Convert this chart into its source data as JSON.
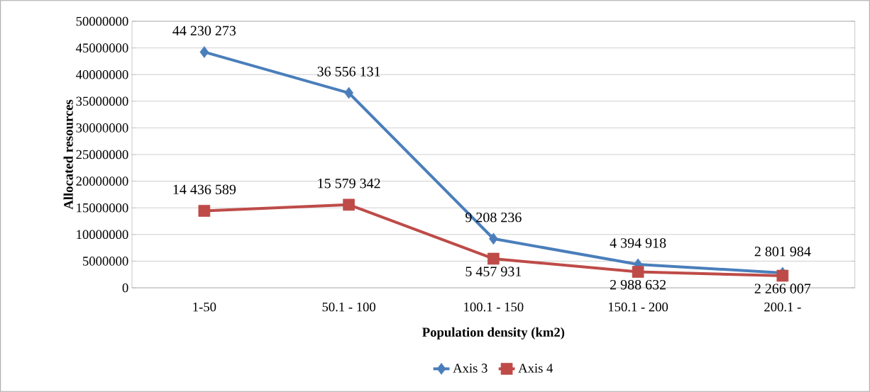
{
  "chart_data": {
    "type": "line",
    "xlabel": "Population density (km2)",
    "ylabel": "Allocated resources",
    "categories": [
      "1-50",
      "50.1 - 100",
      "100.1 - 150",
      "150.1 - 200",
      "200.1 -"
    ],
    "series": [
      {
        "name": "Axis 3",
        "color": "#4a7ebb",
        "marker": "diamond",
        "values": [
          44230273,
          36556131,
          9208236,
          4394918,
          2801984
        ],
        "value_labels": [
          "44 230 273",
          "36 556 131",
          "9 208 236",
          "4 394 918",
          "2 801 984"
        ]
      },
      {
        "name": "Axis 4",
        "color": "#be4b48",
        "marker": "square",
        "values": [
          14436589,
          15579342,
          5457931,
          2988632,
          2266007
        ],
        "value_labels": [
          "14 436 589",
          "15 579 342",
          "5 457 931",
          "2 988 632",
          "2 266 007"
        ]
      }
    ],
    "ylim": [
      0,
      50000000
    ],
    "yticks": [
      0,
      5000000,
      10000000,
      15000000,
      20000000,
      25000000,
      30000000,
      35000000,
      40000000,
      45000000,
      50000000
    ],
    "grid": "y",
    "legend": "bottom"
  }
}
